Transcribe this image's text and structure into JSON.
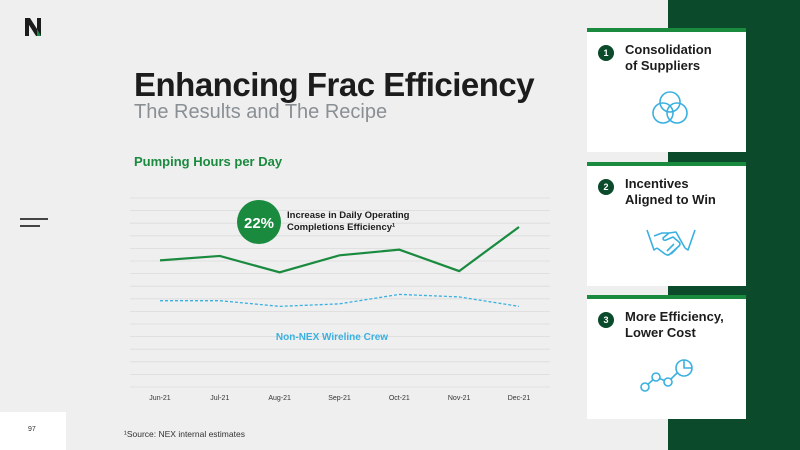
{
  "slide": {
    "title": "Enhancing Frac Efficiency",
    "subtitle": "The Results and The Recipe",
    "page_number": "97",
    "footnote": "¹Source: NEX internal estimates"
  },
  "brand": {
    "logo_icon": "nex-n-logo",
    "accent": "#1a8a3f",
    "dark_green": "#0b4a2a",
    "dashed_blue": "#3ab0e0"
  },
  "chart_data": {
    "type": "line",
    "title": "Pumping Hours per Day",
    "categories": [
      "Jun-21",
      "Jul-21",
      "Aug-21",
      "Sep-21",
      "Oct-21",
      "Nov-21",
      "Dec-21"
    ],
    "series": [
      {
        "name": "",
        "style": "solid",
        "color": "#1a8a3f",
        "values": [
          20.1,
          20.8,
          18.2,
          20.9,
          21.8,
          18.4,
          25.4
        ]
      },
      {
        "name": "Non-NEX Wireline Crew",
        "style": "dashed",
        "color": "#3ab0e0",
        "values": [
          13.7,
          13.7,
          12.8,
          13.2,
          14.7,
          14.3,
          12.8
        ]
      }
    ],
    "ylim": [
      0,
      30
    ],
    "grid": true,
    "callout": {
      "value": "22%",
      "text_line1": "Increase in Daily Operating",
      "text_line2": "Completions Efficiency¹"
    }
  },
  "cards": [
    {
      "number": "1",
      "line1": "Consolidation",
      "line2": "of Suppliers",
      "icon": "venn-circles-icon"
    },
    {
      "number": "2",
      "line1": "Incentives",
      "line2": "Aligned to Win",
      "icon": "handshake-icon"
    },
    {
      "number": "3",
      "line1": "More Efficiency,",
      "line2": "Lower Cost",
      "icon": "connected-nodes-chart-icon"
    }
  ],
  "menu_icon": "menu-lines-icon"
}
